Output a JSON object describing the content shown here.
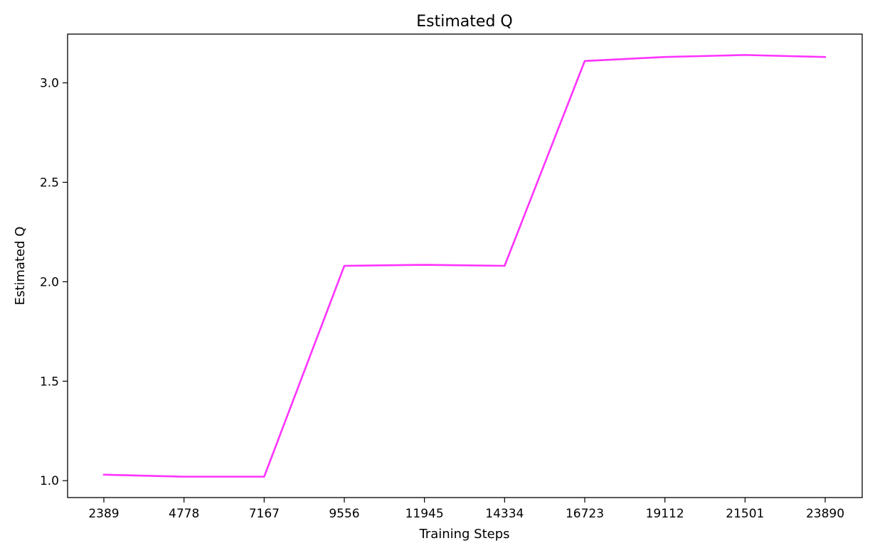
{
  "chart_data": {
    "type": "line",
    "title": "Estimated Q",
    "xlabel": "Training Steps",
    "ylabel": "Estimated Q",
    "x": [
      2389,
      4778,
      7167,
      9556,
      11945,
      14334,
      16723,
      19112,
      21501,
      23890
    ],
    "x_tick_labels": [
      "2389",
      "4778",
      "7167",
      "9556",
      "11945",
      "14334",
      "16723",
      "19112",
      "21501",
      "23890"
    ],
    "series": [
      {
        "name": "",
        "color": "#ff33ff",
        "values": [
          1.03,
          1.02,
          1.02,
          2.08,
          2.085,
          2.08,
          3.11,
          3.13,
          3.14,
          3.13
        ]
      }
    ],
    "y_ticks": [
      1.0,
      1.5,
      2.0,
      2.5,
      3.0
    ],
    "y_tick_labels": [
      "1.0",
      "1.5",
      "2.0",
      "2.5",
      "3.0"
    ],
    "ylim": [
      0.915,
      3.245
    ],
    "grid": false,
    "legend": "none"
  }
}
